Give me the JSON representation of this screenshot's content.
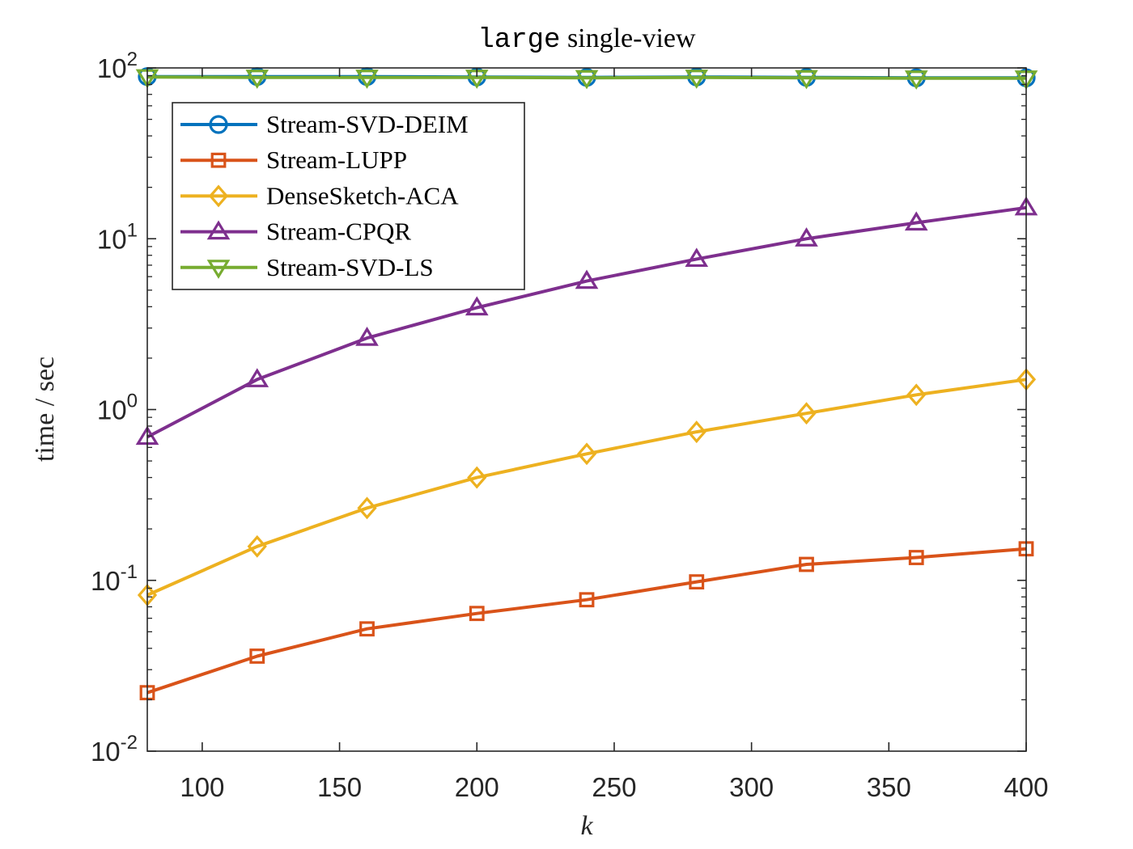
{
  "chart_data": {
    "type": "line",
    "title_code": "large",
    "title_rest": " single-view",
    "xlabel": "k",
    "ylabel": "time / sec",
    "xscale": "linear",
    "yscale": "log",
    "xlim": [
      80,
      400
    ],
    "ylim": [
      0.01,
      100
    ],
    "xticks": [
      100,
      150,
      200,
      250,
      300,
      350,
      400
    ],
    "xtick_labels": [
      "100",
      "150",
      "200",
      "250",
      "300",
      "350",
      "400"
    ],
    "yticks": [
      0.01,
      0.1,
      1,
      10,
      100
    ],
    "ytick_labels": [
      {
        "base": "10",
        "exp": "-2"
      },
      {
        "base": "10",
        "exp": "-1"
      },
      {
        "base": "10",
        "exp": "0"
      },
      {
        "base": "10",
        "exp": "1"
      },
      {
        "base": "10",
        "exp": "2"
      }
    ],
    "grid": false,
    "legend_position": "top-left",
    "x": [
      80,
      120,
      160,
      200,
      240,
      280,
      320,
      360,
      400
    ],
    "series": [
      {
        "name": "Stream-SVD-DEIM",
        "color": "#0072BD",
        "marker": "circle",
        "values": [
          89,
          89,
          89,
          88.5,
          88,
          88.5,
          88,
          87.5,
          87.5
        ]
      },
      {
        "name": "Stream-LUPP",
        "color": "#D95319",
        "marker": "square",
        "values": [
          0.022,
          0.036,
          0.052,
          0.064,
          0.077,
          0.098,
          0.124,
          0.136,
          0.153
        ]
      },
      {
        "name": "DenseSketch-ACA",
        "color": "#EDB120",
        "marker": "diamond",
        "values": [
          0.082,
          0.158,
          0.265,
          0.4,
          0.55,
          0.74,
          0.95,
          1.22,
          1.5
        ]
      },
      {
        "name": "Stream-CPQR",
        "color": "#7E2F8E",
        "marker": "triangle-up",
        "values": [
          0.69,
          1.5,
          2.62,
          3.95,
          5.65,
          7.6,
          10.0,
          12.4,
          15.2
        ]
      },
      {
        "name": "Stream-SVD-LS",
        "color": "#77AC30",
        "marker": "triangle-down",
        "values": [
          88.5,
          88,
          88,
          88,
          87.5,
          88,
          87.5,
          87,
          87
        ]
      }
    ]
  }
}
